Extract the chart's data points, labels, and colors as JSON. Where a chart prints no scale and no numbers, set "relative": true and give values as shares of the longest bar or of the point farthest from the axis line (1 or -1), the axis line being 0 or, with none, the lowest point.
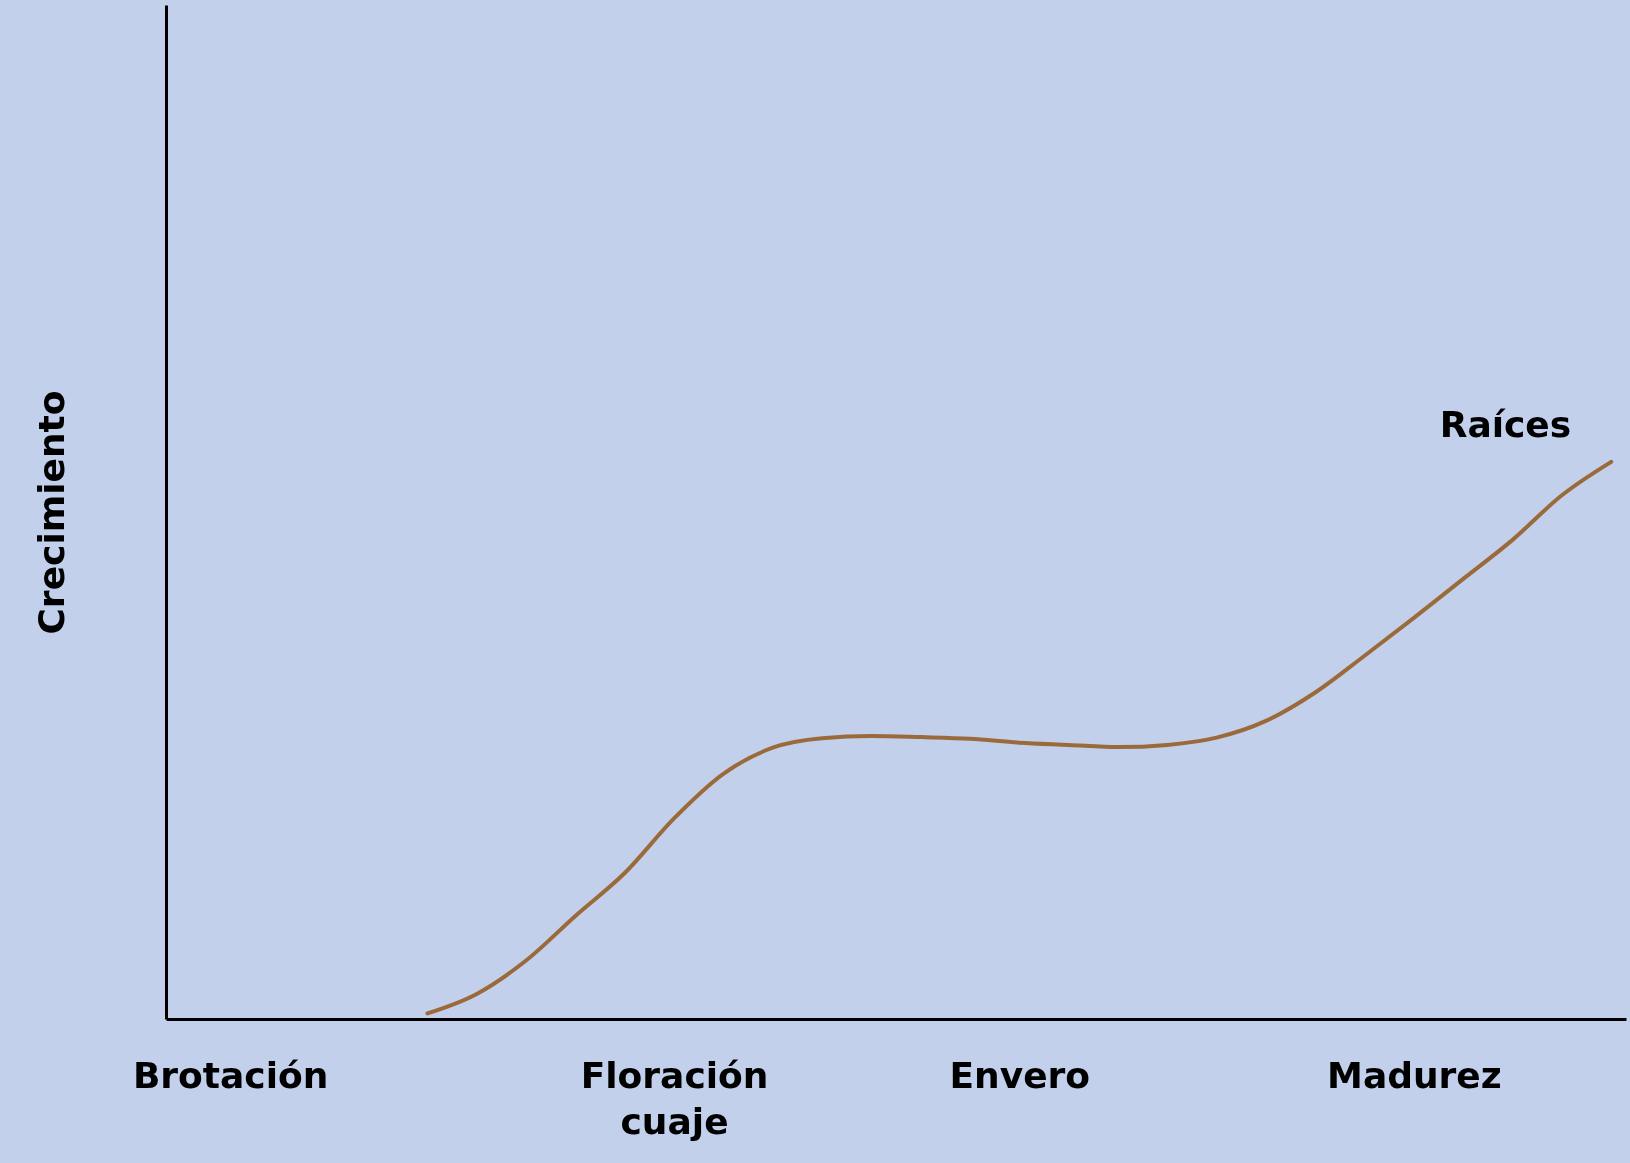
{
  "chart_data": {
    "type": "line",
    "relative": true,
    "ylabel": "Crecimiento",
    "categories": [
      null,
      "Brotación",
      null,
      null,
      null,
      null,
      null,
      null,
      null,
      null,
      "Floración\ncuaje",
      null,
      null,
      null,
      null,
      null,
      null,
      "Envero",
      null,
      null,
      null,
      null,
      null,
      null,
      null,
      "Madurez",
      null,
      null,
      null,
      null
    ],
    "series": [
      {
        "name": "Raíces",
        "color": "#9b6a3a",
        "values": [
          null,
          null,
          null,
          null,
          null,
          0.01,
          0.045,
          0.105,
          0.185,
          0.262,
          0.36,
          0.44,
          0.487,
          0.504,
          0.508,
          0.506,
          0.503,
          0.496,
          0.492,
          0.488,
          0.492,
          0.505,
          0.535,
          0.586,
          0.652,
          0.72,
          0.79,
          0.86,
          0.94,
          1.0
        ]
      }
    ],
    "grid": false
  }
}
